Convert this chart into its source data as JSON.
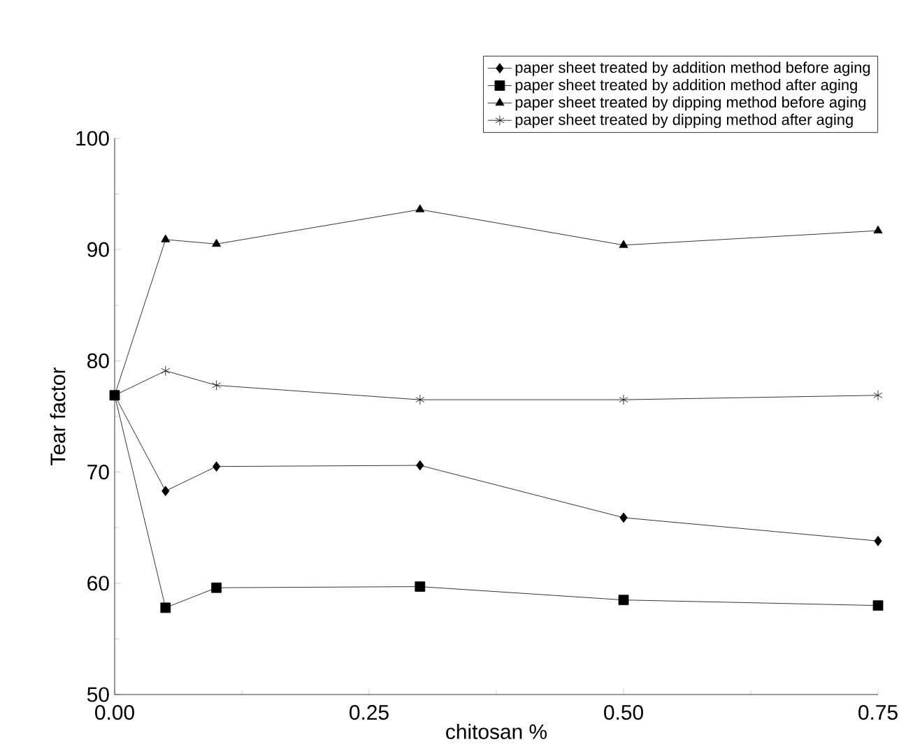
{
  "chart_data": {
    "type": "line",
    "xlabel": "chitosan %",
    "ylabel": "Tear factor",
    "x": [
      0,
      0.05,
      0.1,
      0.3,
      0.5,
      0.75
    ],
    "series": [
      {
        "name": "paper sheet treated by addition method before aging",
        "color": "#000000",
        "marker": "diamond",
        "values": [
          76.9,
          68.3,
          70.5,
          70.6,
          65.9,
          63.8
        ]
      },
      {
        "name": "paper sheet treated by addition method after aging",
        "color": "#000000",
        "marker": "square",
        "values": [
          76.9,
          57.8,
          59.6,
          59.7,
          58.5,
          58.0
        ]
      },
      {
        "name": "paper sheet treated by dipping method before aging",
        "color": "#000000",
        "marker": "triangle",
        "values": [
          76.9,
          90.9,
          90.5,
          93.6,
          90.4,
          91.7
        ]
      },
      {
        "name": "paper sheet treated by dipping method after aging",
        "color": "#000000",
        "marker": "cross",
        "values": [
          76.9,
          79.1,
          77.8,
          76.5,
          76.5,
          76.9
        ]
      }
    ],
    "xlim": [
      0,
      0.75
    ],
    "xticks": [
      {
        "value": 0,
        "label": "0.00"
      },
      {
        "value": 0.25,
        "label": "0.25"
      },
      {
        "value": 0.5,
        "label": "0.50"
      },
      {
        "value": 0.75,
        "label": "0.75"
      }
    ],
    "ylim": [
      50,
      100
    ],
    "yticks": [
      50,
      60,
      70,
      80,
      90,
      100
    ],
    "grid": false,
    "legend": "top",
    "line_style": "solid"
  }
}
